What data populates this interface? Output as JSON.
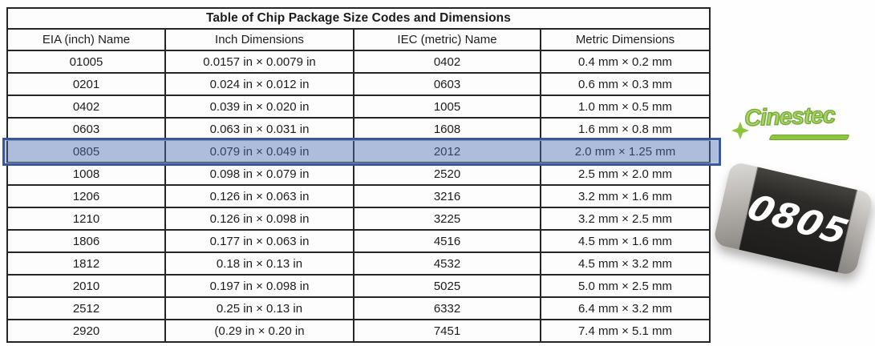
{
  "table": {
    "title": "Table of Chip Package Size Codes and Dimensions",
    "columns": [
      "EIA (inch) Name",
      "Inch Dimensions",
      "IEC (metric) Name",
      "Metric Dimensions"
    ],
    "rows": [
      [
        "01005",
        "0.0157 in × 0.0079 in",
        "0402",
        "0.4 mm × 0.2 mm"
      ],
      [
        "0201",
        "0.024 in × 0.012 in",
        "0603",
        "0.6 mm × 0.3 mm"
      ],
      [
        "0402",
        "0.039 in × 0.020 in",
        "1005",
        "1.0 mm × 0.5 mm"
      ],
      [
        "0603",
        "0.063 in × 0.031 in",
        "1608",
        "1.6 mm × 0.8 mm"
      ],
      [
        "0805",
        "0.079 in × 0.049 in",
        "2012",
        "2.0 mm × 1.25 mm"
      ],
      [
        "1008",
        "0.098 in × 0.079 in",
        "2520",
        "2.5 mm × 2.0 mm"
      ],
      [
        "1206",
        "0.126 in × 0.063 in",
        "3216",
        "3.2 mm × 1.6 mm"
      ],
      [
        "1210",
        "0.126 in × 0.098 in",
        "3225",
        "3.2 mm × 2.5 mm"
      ],
      [
        "1806",
        "0.177 in × 0.063 in",
        "4516",
        "4.5 mm × 1.6 mm"
      ],
      [
        "1812",
        "0.18 in × 0.13 in",
        "4532",
        "4.5 mm × 3.2 mm"
      ],
      [
        "2010",
        "0.197 in × 0.098 in",
        "5025",
        "5.0 mm × 2.5 mm"
      ],
      [
        "2512",
        "0.25 in × 0.13 in",
        "6332",
        "6.4 mm × 3.2 mm"
      ],
      [
        "2920",
        "(0.29 in × 0.20 in",
        "7451",
        "7.4 mm × 5.1 mm"
      ]
    ],
    "highlighted_row_index": 4,
    "highlight_fill": "#8ba3d2",
    "highlight_border": "#37589d"
  },
  "logo": {
    "text": "Cinestec",
    "color": "#8cc63f"
  },
  "chip": {
    "label": "0805",
    "body_color": "#2b2a28",
    "cap_color": "#b9b6b2",
    "label_color": "#ffffff"
  }
}
